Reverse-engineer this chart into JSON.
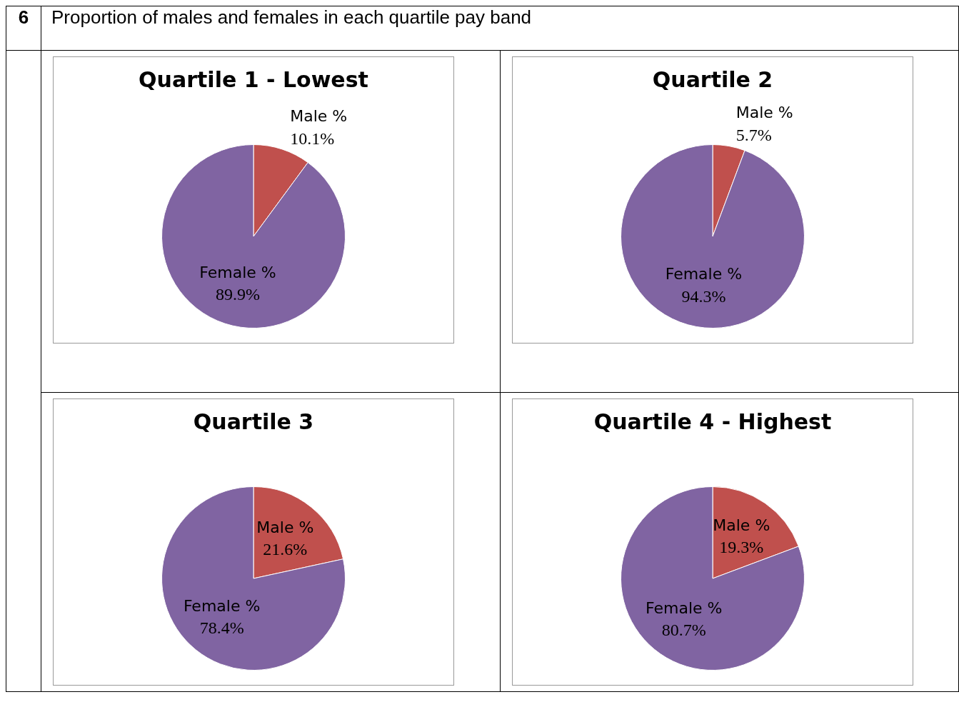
{
  "chart_data": [
    {
      "type": "pie",
      "title": "Quartile 1 - Lowest",
      "categories": [
        "Male %",
        "Female %"
      ],
      "values": [
        10.1,
        89.9
      ],
      "colors": [
        "#c0504d",
        "#8064a2"
      ],
      "value_labels": [
        "10.1%",
        "89.9%"
      ],
      "legend": false,
      "annotations": [
        "6",
        "Proportion of males and females in each quartile pay band"
      ]
    },
    {
      "type": "pie",
      "title": "Quartile 2",
      "categories": [
        "Male %",
        "Female %"
      ],
      "values": [
        5.7,
        94.3
      ],
      "colors": [
        "#c0504d",
        "#8064a2"
      ],
      "value_labels": [
        "5.7%",
        "94.3%"
      ],
      "legend": false
    },
    {
      "type": "pie",
      "title": "Quartile 3",
      "categories": [
        "Male %",
        "Female %"
      ],
      "values": [
        21.6,
        78.4
      ],
      "colors": [
        "#c0504d",
        "#8064a2"
      ],
      "value_labels": [
        "21.6%",
        "78.4%"
      ],
      "legend": false
    },
    {
      "type": "pie",
      "title": "Quartile 4 - Highest",
      "categories": [
        "Male %",
        "Female %"
      ],
      "values": [
        19.3,
        80.7
      ],
      "colors": [
        "#c0504d",
        "#8064a2"
      ],
      "value_labels": [
        "19.3%",
        "80.7%"
      ],
      "legend": false
    }
  ]
}
